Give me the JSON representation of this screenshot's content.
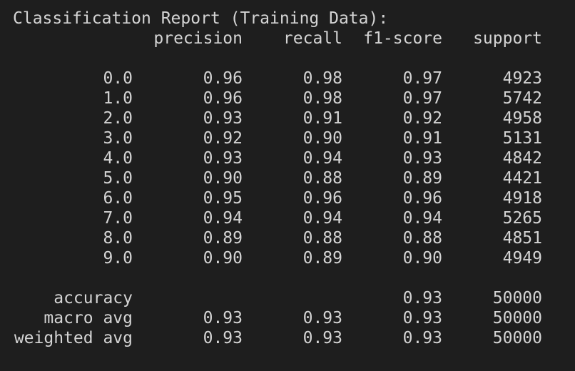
{
  "title": "Classification Report (Training Data):",
  "headers": {
    "precision": "precision",
    "recall": "recall",
    "f1": "f1-score",
    "support": "support"
  },
  "rows": [
    {
      "label": "0.0",
      "precision": "0.96",
      "recall": "0.98",
      "f1": "0.97",
      "support": "4923"
    },
    {
      "label": "1.0",
      "precision": "0.96",
      "recall": "0.98",
      "f1": "0.97",
      "support": "5742"
    },
    {
      "label": "2.0",
      "precision": "0.93",
      "recall": "0.91",
      "f1": "0.92",
      "support": "4958"
    },
    {
      "label": "3.0",
      "precision": "0.92",
      "recall": "0.90",
      "f1": "0.91",
      "support": "5131"
    },
    {
      "label": "4.0",
      "precision": "0.93",
      "recall": "0.94",
      "f1": "0.93",
      "support": "4842"
    },
    {
      "label": "5.0",
      "precision": "0.90",
      "recall": "0.88",
      "f1": "0.89",
      "support": "4421"
    },
    {
      "label": "6.0",
      "precision": "0.95",
      "recall": "0.96",
      "f1": "0.96",
      "support": "4918"
    },
    {
      "label": "7.0",
      "precision": "0.94",
      "recall": "0.94",
      "f1": "0.94",
      "support": "5265"
    },
    {
      "label": "8.0",
      "precision": "0.89",
      "recall": "0.88",
      "f1": "0.88",
      "support": "4851"
    },
    {
      "label": "9.0",
      "precision": "0.90",
      "recall": "0.89",
      "f1": "0.90",
      "support": "4949"
    }
  ],
  "summary": {
    "accuracy": {
      "label": "accuracy",
      "f1": "0.93",
      "support": "50000"
    },
    "macro_avg": {
      "label": "macro avg",
      "precision": "0.93",
      "recall": "0.93",
      "f1": "0.93",
      "support": "50000"
    },
    "weighted_avg": {
      "label": "weighted avg",
      "precision": "0.93",
      "recall": "0.93",
      "f1": "0.93",
      "support": "50000"
    }
  }
}
